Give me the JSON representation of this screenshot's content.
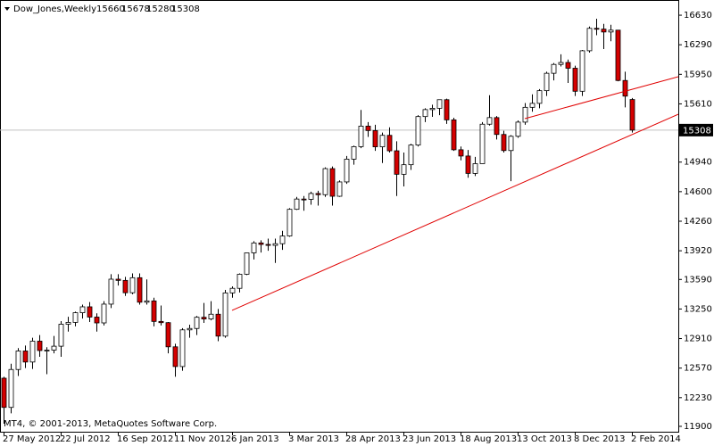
{
  "chart_data": {
    "type": "candlestick",
    "symbol": "Dow_Jones,Weekly",
    "copyright": "MT4, © 2001-2013, MetaQuotes Software Corp.",
    "categories": [
      "27 May 2012",
      null,
      null,
      null,
      null,
      null,
      null,
      null,
      "22 Jul 2012",
      null,
      null,
      null,
      null,
      null,
      null,
      null,
      "16 Sep 2012",
      null,
      null,
      null,
      null,
      null,
      null,
      null,
      "11 Nov 2012",
      null,
      null,
      null,
      null,
      null,
      null,
      null,
      "6 Jan 2013",
      null,
      null,
      null,
      null,
      null,
      null,
      null,
      "3 Mar 2013",
      null,
      null,
      null,
      null,
      null,
      null,
      null,
      "28 Apr 2013",
      null,
      null,
      null,
      null,
      null,
      null,
      null,
      "23 Jun 2013",
      null,
      null,
      null,
      null,
      null,
      null,
      null,
      "18 Aug 2013",
      null,
      null,
      null,
      null,
      null,
      null,
      null,
      "13 Oct 2013",
      null,
      null,
      null,
      null,
      null,
      null,
      null,
      "8 Dec 2013",
      null,
      null,
      null,
      null,
      null,
      null,
      null,
      "2 Feb 2014"
    ],
    "open": [
      12454,
      12118,
      12554,
      12767,
      12640,
      12880,
      12772,
      12777,
      12822,
      13075,
      13096,
      13207,
      13275,
      13157,
      13090,
      13306,
      13593,
      13579,
      13437,
      13610,
      13328,
      13343,
      13107,
      13093,
      12815,
      12588,
      13010,
      13026,
      13155,
      13135,
      13190,
      12938,
      13435,
      13488,
      13650,
      13896,
      14010,
      13993,
      13982,
      14001,
      14090,
      14397,
      14515,
      14512,
      14579,
      14565,
      14865,
      14547,
      14712,
      14974,
      15118,
      15354,
      15303,
      15116,
      15248,
      15070,
      14800,
      14910,
      15136,
      15464,
      15544,
      15559,
      15658,
      15426,
      15082,
      15010,
      14810,
      14922,
      15376,
      15452,
      15258,
      15073,
      15237,
      15400,
      15570,
      15616,
      15762,
      15962,
      16064,
      16086,
      16020,
      15755,
      16221,
      16479,
      16470,
      16437,
      16458,
      15879,
      15660
    ],
    "high": [
      12470,
      12620,
      12800,
      12830,
      12920,
      12950,
      12810,
      12940,
      13110,
      13160,
      13220,
      13300,
      13330,
      13200,
      13340,
      13650,
      13650,
      13620,
      13660,
      13660,
      13590,
      13380,
      13290,
      13100,
      12850,
      13030,
      13070,
      13170,
      13320,
      13340,
      13250,
      13470,
      13510,
      13660,
      13900,
      14030,
      14040,
      14060,
      14060,
      14150,
      14410,
      14540,
      14550,
      14600,
      14610,
      14880,
      14890,
      14730,
      15010,
      15130,
      15540,
      15400,
      15370,
      15280,
      15340,
      15180,
      15050,
      15150,
      15480,
      15560,
      15600,
      15660,
      15670,
      15450,
      15120,
      15080,
      15000,
      15400,
      15710,
      15470,
      15300,
      15250,
      15420,
      15620,
      15720,
      15780,
      15980,
      16080,
      16180,
      16120,
      16050,
      16230,
      16500,
      16590,
      16530,
      16520,
      16460,
      15980,
      15678
    ],
    "low": [
      11930,
      12050,
      12480,
      12570,
      12560,
      12700,
      12500,
      12740,
      12700,
      12990,
      13050,
      13140,
      13100,
      12990,
      13060,
      13260,
      13520,
      13400,
      13420,
      13300,
      13300,
      13050,
      13060,
      12740,
      12470,
      12540,
      12920,
      12950,
      13090,
      13120,
      12880,
      12920,
      13380,
      13440,
      13640,
      13820,
      13900,
      13920,
      13780,
      13930,
      14080,
      14390,
      14380,
      14450,
      14440,
      14540,
      14440,
      14540,
      14690,
      14910,
      15100,
      15230,
      15070,
      14930,
      15050,
      14550,
      14660,
      14850,
      15120,
      15400,
      15460,
      15480,
      15380,
      15070,
      14960,
      14760,
      14780,
      14920,
      15360,
      15200,
      15050,
      14720,
      15220,
      15370,
      15520,
      15560,
      15700,
      15880,
      16040,
      15850,
      15700,
      15700,
      16200,
      16400,
      16240,
      16330,
      15870,
      15570,
      15280
    ],
    "close": [
      12118,
      12554,
      12767,
      12640,
      12880,
      12772,
      12777,
      12822,
      13075,
      13096,
      13207,
      13275,
      13157,
      13090,
      13306,
      13593,
      13579,
      13437,
      13610,
      13328,
      13343,
      13107,
      13093,
      12815,
      12588,
      13010,
      13026,
      13155,
      13135,
      13190,
      12938,
      13435,
      13488,
      13650,
      13896,
      14010,
      13993,
      13982,
      14001,
      14090,
      14397,
      14515,
      14512,
      14579,
      14565,
      14865,
      14547,
      14712,
      14974,
      15118,
      15354,
      15303,
      15116,
      15248,
      15070,
      14800,
      14910,
      15136,
      15464,
      15544,
      15559,
      15658,
      15426,
      15082,
      15010,
      14810,
      14922,
      15376,
      15452,
      15258,
      15073,
      15237,
      15400,
      15570,
      15616,
      15762,
      15962,
      16064,
      16086,
      16020,
      15755,
      16221,
      16479,
      16470,
      16437,
      16458,
      15879,
      15699,
      15308
    ],
    "up_color": "#ffffff",
    "down_color": "#d40000",
    "ylim": [
      11838,
      16805
    ],
    "yticks": [
      16630,
      16290,
      15950,
      15610,
      14940,
      14600,
      14260,
      13920,
      13590,
      13250,
      12910,
      12570,
      12230,
      11900
    ],
    "trendlines": [
      {
        "from": [
          32,
          13234
        ],
        "to": [
          94.5,
          15491
        ],
        "color": "#e00000"
      },
      {
        "from": [
          73,
          15440
        ],
        "to": [
          94.5,
          15922
        ],
        "color": "#e00000"
      }
    ]
  }
}
